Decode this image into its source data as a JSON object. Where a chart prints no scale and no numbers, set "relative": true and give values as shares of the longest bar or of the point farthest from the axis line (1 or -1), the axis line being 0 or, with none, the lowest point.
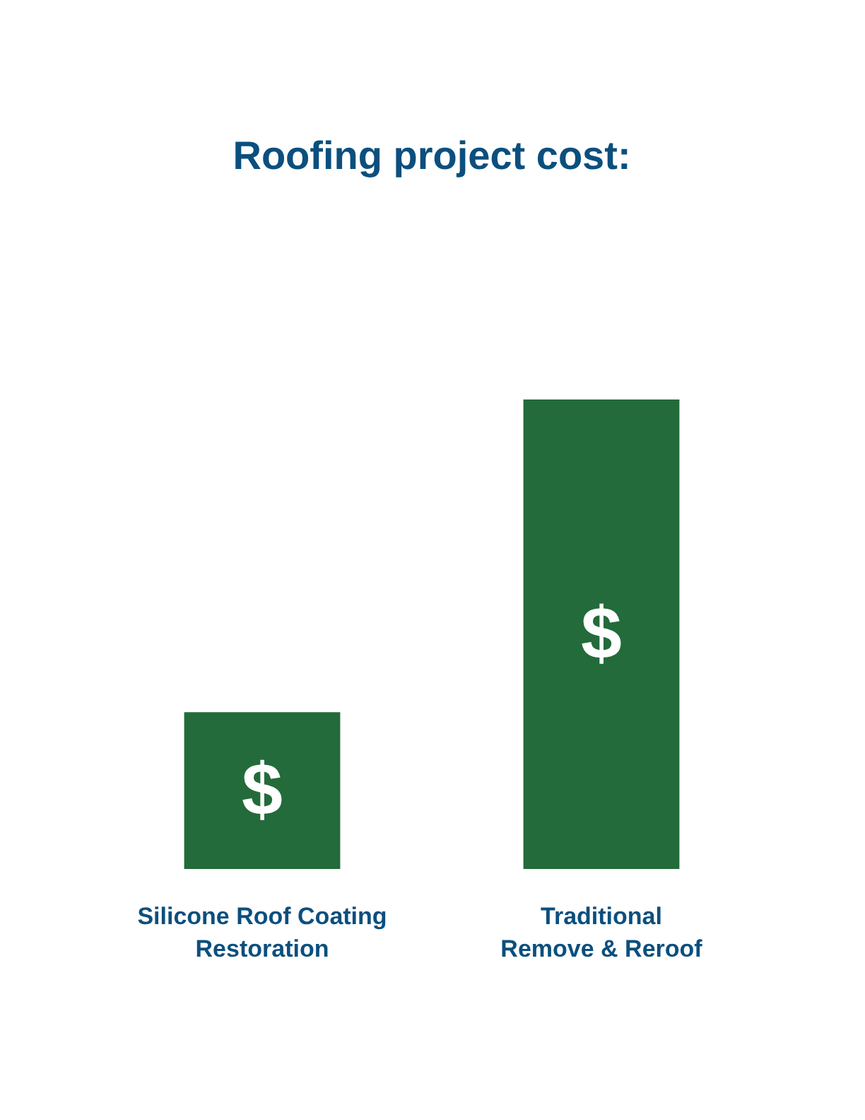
{
  "chart_data": {
    "type": "bar",
    "title": "Roofing project cost:",
    "relative": true,
    "categories": [
      "Silicone Roof Coating\nRestoration",
      "Traditional\nRemove & Reroof"
    ],
    "values": [
      0.334,
      1
    ],
    "color": "#236b3a",
    "grid": false,
    "annotations": [
      "$",
      "$"
    ]
  }
}
